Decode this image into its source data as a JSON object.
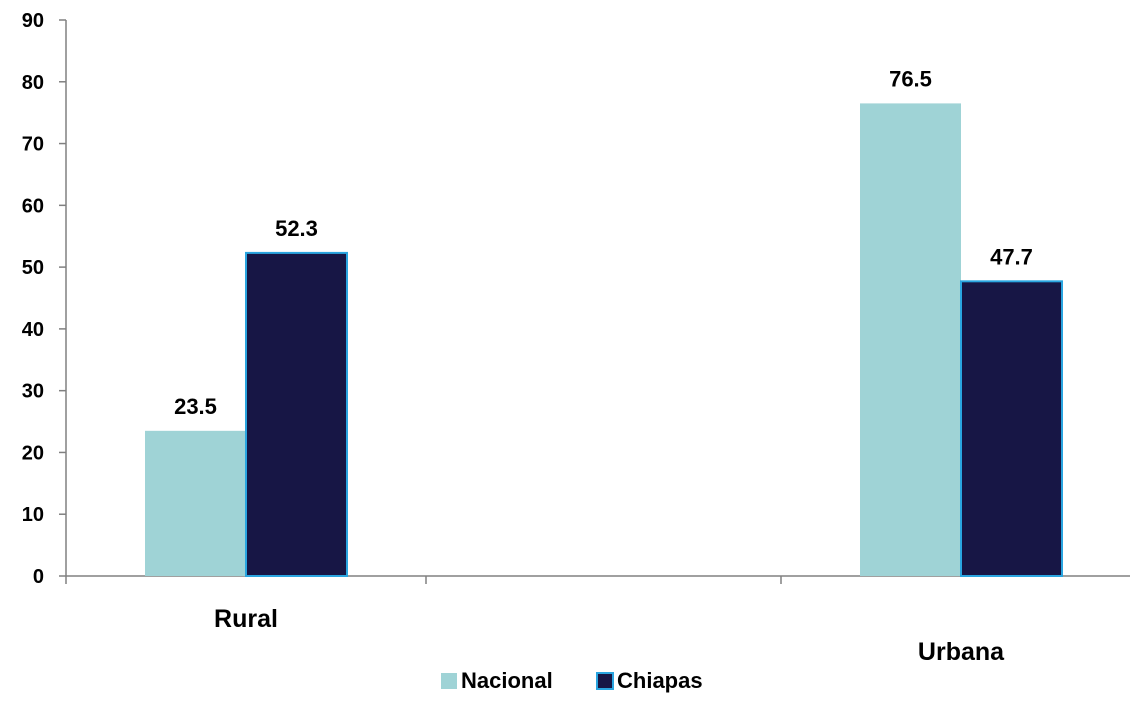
{
  "chart_data": {
    "type": "bar",
    "categories": [
      "Rural",
      "Urbana"
    ],
    "series": [
      {
        "name": "Nacional",
        "values": [
          23.5,
          76.5
        ],
        "color": "#9fd3d6"
      },
      {
        "name": "Chiapas",
        "values": [
          52.3,
          47.7
        ],
        "color": "#171645",
        "stroke": "#2aa5e0"
      }
    ],
    "ylim": [
      0,
      90
    ],
    "yticks": [
      0,
      10,
      20,
      30,
      40,
      50,
      60,
      70,
      80,
      90
    ],
    "ytick_labels": [
      "0",
      "10",
      "20",
      "30",
      "40",
      "50",
      "60",
      "70",
      "80",
      "90"
    ],
    "data_labels": [
      [
        "23.5",
        "76.5"
      ],
      [
        "52.3",
        "47.7"
      ]
    ],
    "grid": false,
    "legend": "bottom-center",
    "axis_color": "#808080"
  }
}
